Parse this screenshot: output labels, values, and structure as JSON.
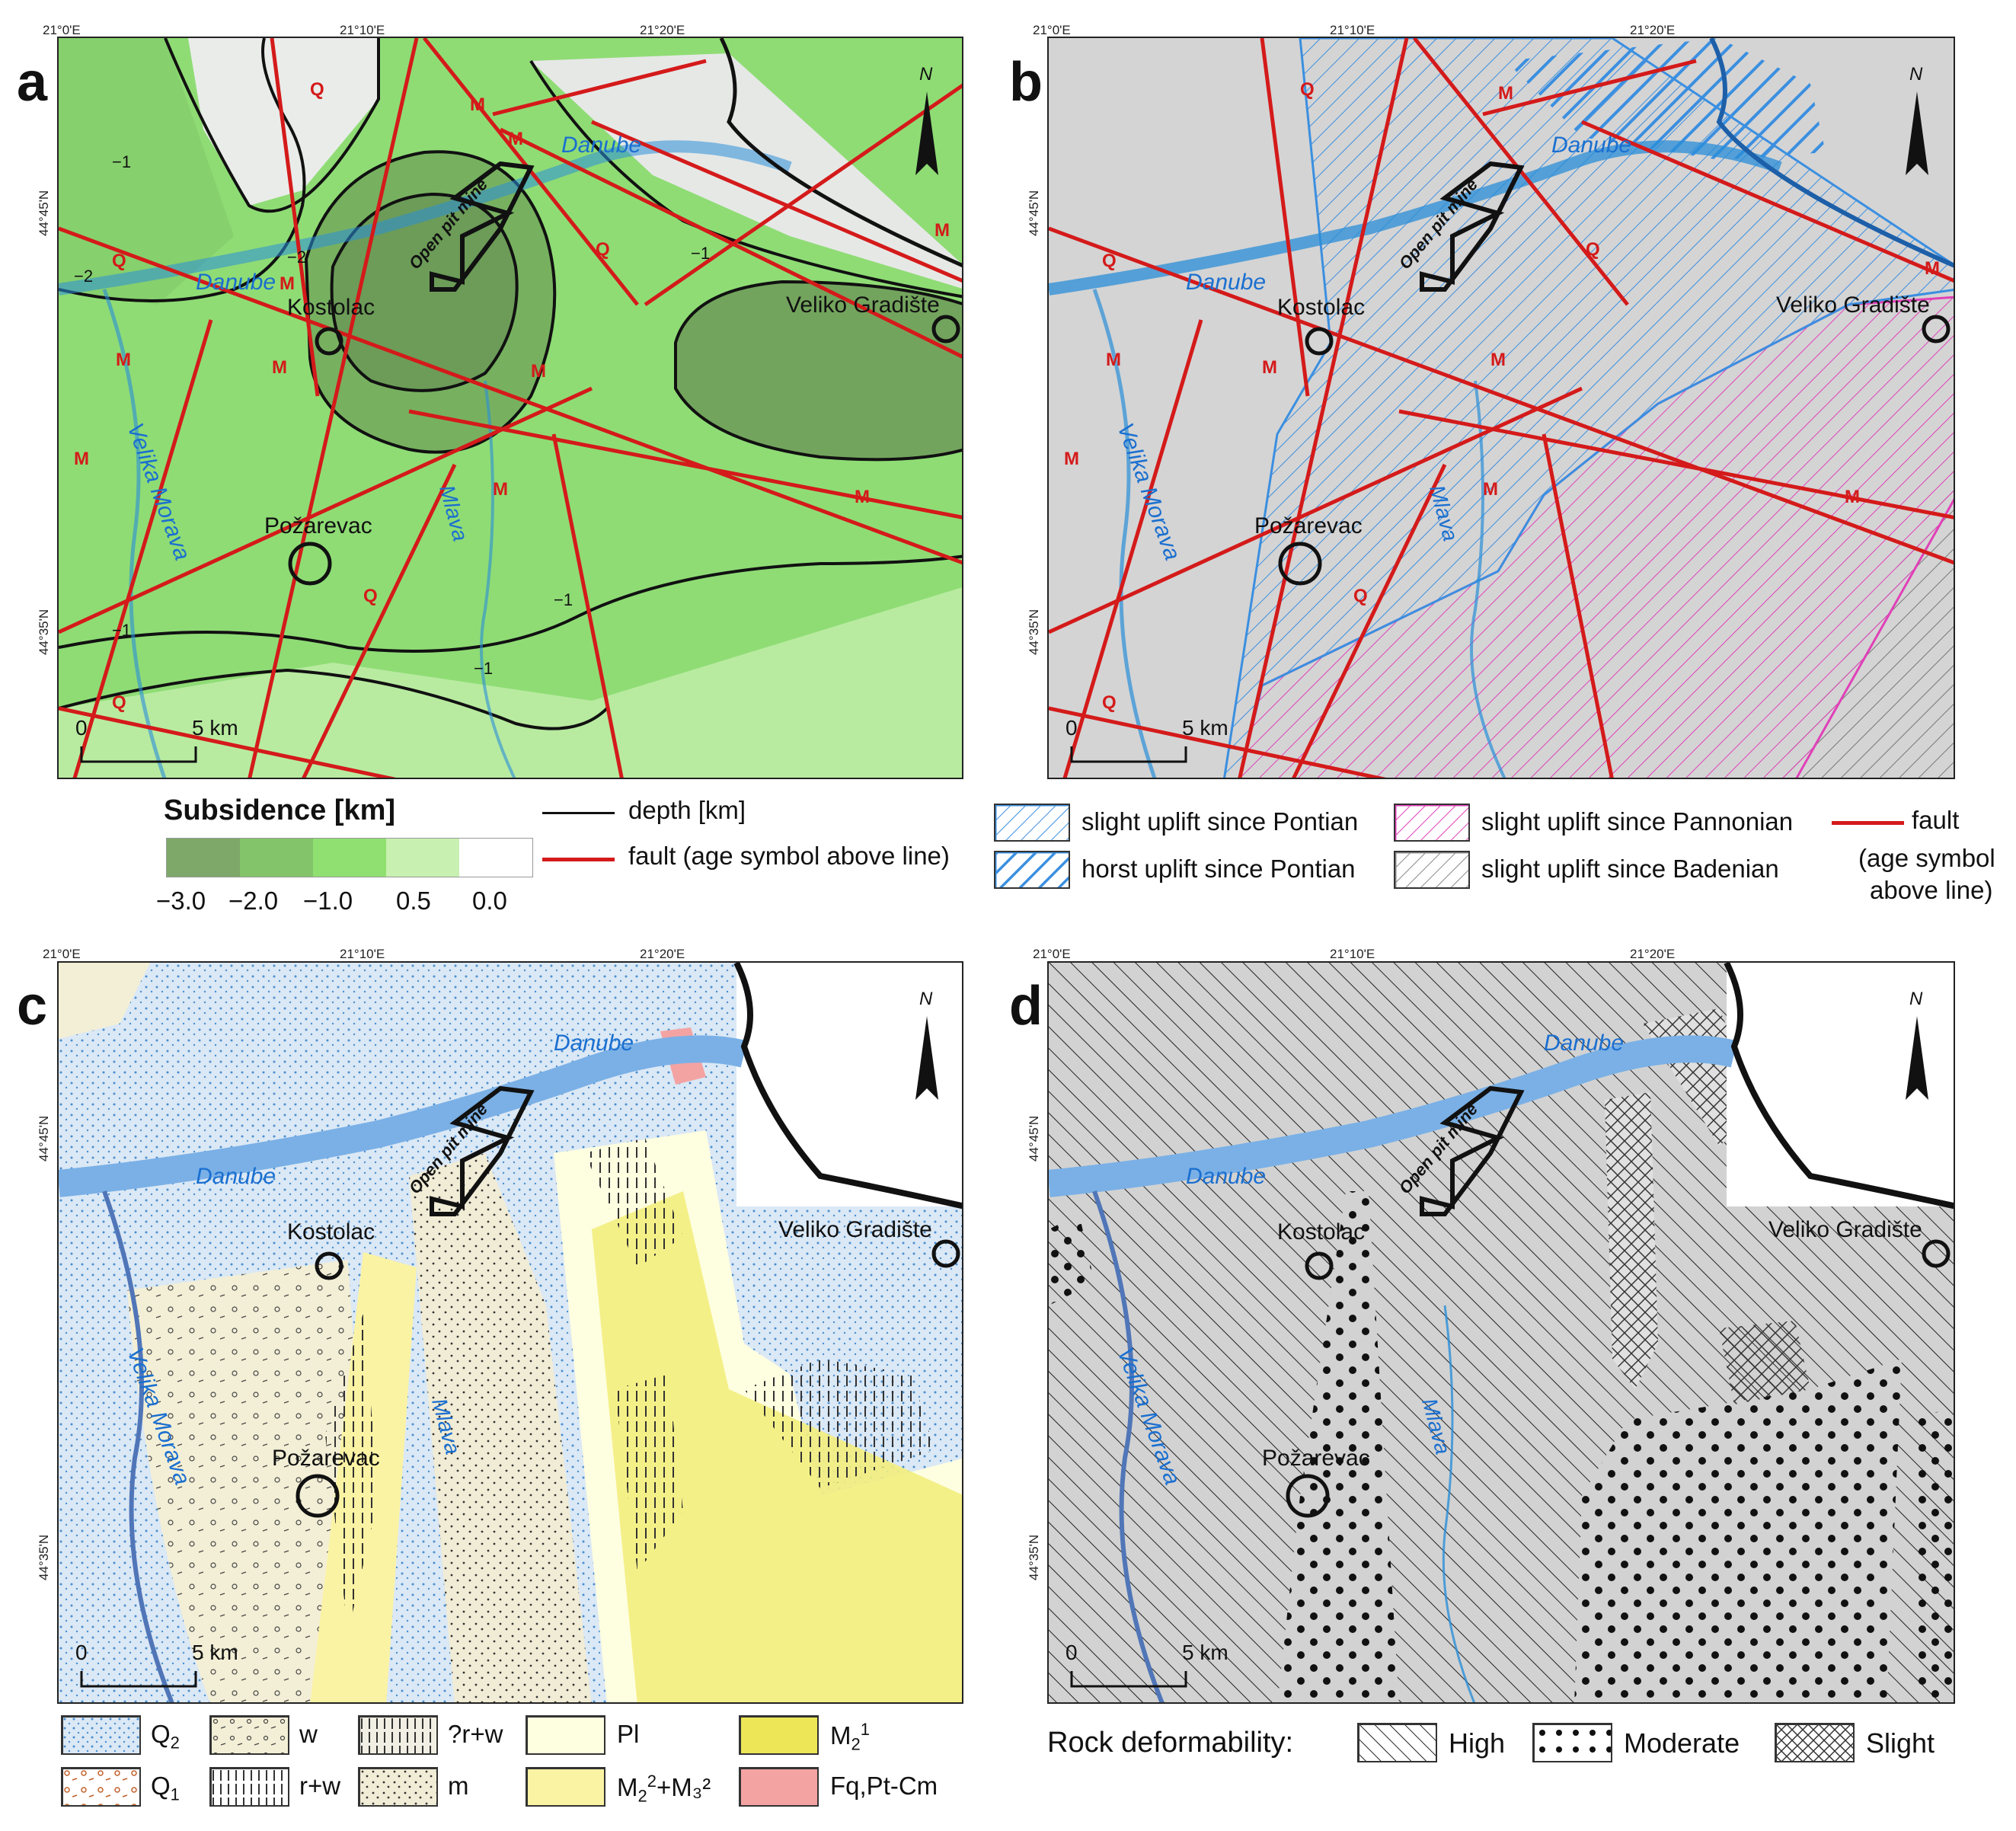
{
  "coordinates": {
    "lon": [
      "21°0'E",
      "21°10'E",
      "21°20'E"
    ],
    "lat": [
      "44°45'N",
      "44°35'N"
    ]
  },
  "panels": {
    "a": {
      "label": "a"
    },
    "b": {
      "label": "b"
    },
    "c": {
      "label": "c"
    },
    "d": {
      "label": "d"
    }
  },
  "map_labels": {
    "danube": "Danube",
    "velika_morava": "Velika Morava",
    "mlava": "Mlava",
    "kostolac": "Kostolac",
    "pozarevac": "Požarevac",
    "veliko_gradiste": "Veliko Gradište",
    "open_pit_mine": "Open pit mine",
    "north": "N",
    "scale_zero": "0",
    "scale_five": "5 km"
  },
  "fault_ages": {
    "q": "Q",
    "m": "M"
  },
  "contour_labels": {
    "minus1": "−1",
    "minus2": "−2"
  },
  "legend_a": {
    "title": "Subsidence [km]",
    "ticks": [
      "−3.0",
      "−2.0",
      "−1.0",
      "0.5",
      "0.0"
    ],
    "colors": [
      "#7ea86a",
      "#83c46a",
      "#8fe070",
      "#c8f0b0",
      "#ffffff"
    ],
    "depth": "depth [km]",
    "fault": "fault (age symbol above line)"
  },
  "legend_b": {
    "pontian_slight": "slight uplift since Pontian",
    "pontian_horst": "horst uplift since Pontian",
    "pannonian": "slight uplift since Pannonian",
    "badenian": "slight uplift since Badenian",
    "fault": "fault",
    "fault_note_1": "(age symbol",
    "fault_note_2": "above line)"
  },
  "legend_c": {
    "items": [
      {
        "code": "Q",
        "sub": "2",
        "sup": "",
        "tail": "",
        "color": "#dbe8f5"
      },
      {
        "code": "Q",
        "sub": "1",
        "sup": "",
        "tail": "",
        "color": "#ffffff"
      },
      {
        "code": "w",
        "sub": "",
        "sup": "",
        "tail": "",
        "color": "#f3efd6"
      },
      {
        "code": "r+w",
        "sub": "",
        "sup": "",
        "tail": "",
        "color": "#ffffff"
      },
      {
        "code": "?r+w",
        "sub": "",
        "sup": "",
        "tail": "",
        "color": "#f1efe3"
      },
      {
        "code": "m",
        "sub": "",
        "sup": "",
        "tail": "",
        "color": "#f1ecd6"
      },
      {
        "code": "Pl",
        "sub": "",
        "sup": "",
        "tail": "",
        "color": "#fefee0"
      },
      {
        "code": "M",
        "sub": "2",
        "sup": "2",
        "tail": "+M₃²",
        "color": "#fbf3a4"
      },
      {
        "code": "M",
        "sub": "2",
        "sup": "1",
        "tail": "",
        "color": "#ede657"
      },
      {
        "code": "Fq,Pt-Cm",
        "sub": "",
        "sup": "",
        "tail": "",
        "color": "#f4a3a3"
      }
    ]
  },
  "legend_d": {
    "title": "Rock deformability:",
    "high": "High",
    "moderate": "Moderate",
    "slight": "Slight"
  }
}
